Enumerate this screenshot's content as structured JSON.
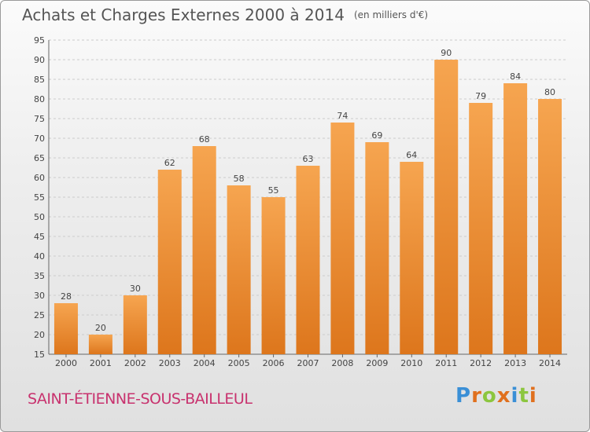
{
  "header": {
    "title": "Achats et Charges Externes 2000 à 2014",
    "unit": "(en milliers d'€)"
  },
  "footer": {
    "commune": "SAINT-ÉTIENNE-SOUS-BAILLEUL",
    "logo_letters": [
      "P",
      "r",
      "o",
      "x",
      "i",
      "t",
      "i"
    ],
    "logo_colors": [
      "#3a8fd6",
      "#e0701e",
      "#8cc63f",
      "#e0701e",
      "#3a8fd6",
      "#8cc63f",
      "#e0701e"
    ]
  },
  "chart_data": {
    "type": "bar",
    "categories": [
      "2000",
      "2001",
      "2002",
      "2003",
      "2004",
      "2005",
      "2006",
      "2007",
      "2008",
      "2009",
      "2010",
      "2011",
      "2012",
      "2013",
      "2014"
    ],
    "values": [
      28,
      20,
      30,
      62,
      68,
      58,
      55,
      63,
      74,
      69,
      64,
      90,
      79,
      84,
      80
    ],
    "ylim": [
      15,
      95
    ],
    "yticks": [
      15,
      20,
      25,
      30,
      35,
      40,
      45,
      50,
      55,
      60,
      65,
      70,
      75,
      80,
      85,
      90,
      95
    ],
    "grid": true,
    "bar_color": "#f0902e",
    "title": "Achats et Charges Externes 2000 à 2014",
    "xlabel": "",
    "ylabel": ""
  }
}
